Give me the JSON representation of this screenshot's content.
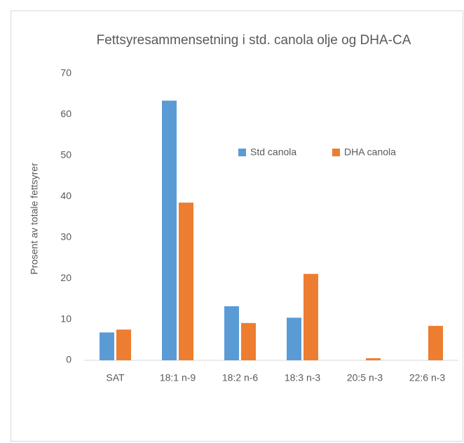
{
  "chart_data": {
    "type": "bar",
    "title": "Fettsyresammensetning i std. canola olje og DHA-CA",
    "y_label": "Prosent av totale fettsyrer",
    "categories": [
      "SAT",
      "18:1 n-9",
      "18:2 n-6",
      "18:3 n-3",
      "20:5 n-3",
      "22:6 n-3"
    ],
    "series": [
      {
        "name": "Std canola",
        "color": "#5b9bd5",
        "values": [
          6.8,
          63.4,
          13.2,
          10.4,
          0,
          0
        ]
      },
      {
        "name": "DHA canola",
        "color": "#ed7d31",
        "values": [
          7.5,
          38.5,
          9.1,
          21.1,
          0.5,
          8.4
        ]
      }
    ],
    "ylim": [
      0,
      70
    ],
    "yticks": [
      0,
      10,
      20,
      30,
      40,
      50,
      60,
      70
    ],
    "grid": false,
    "legend": "top-right"
  }
}
